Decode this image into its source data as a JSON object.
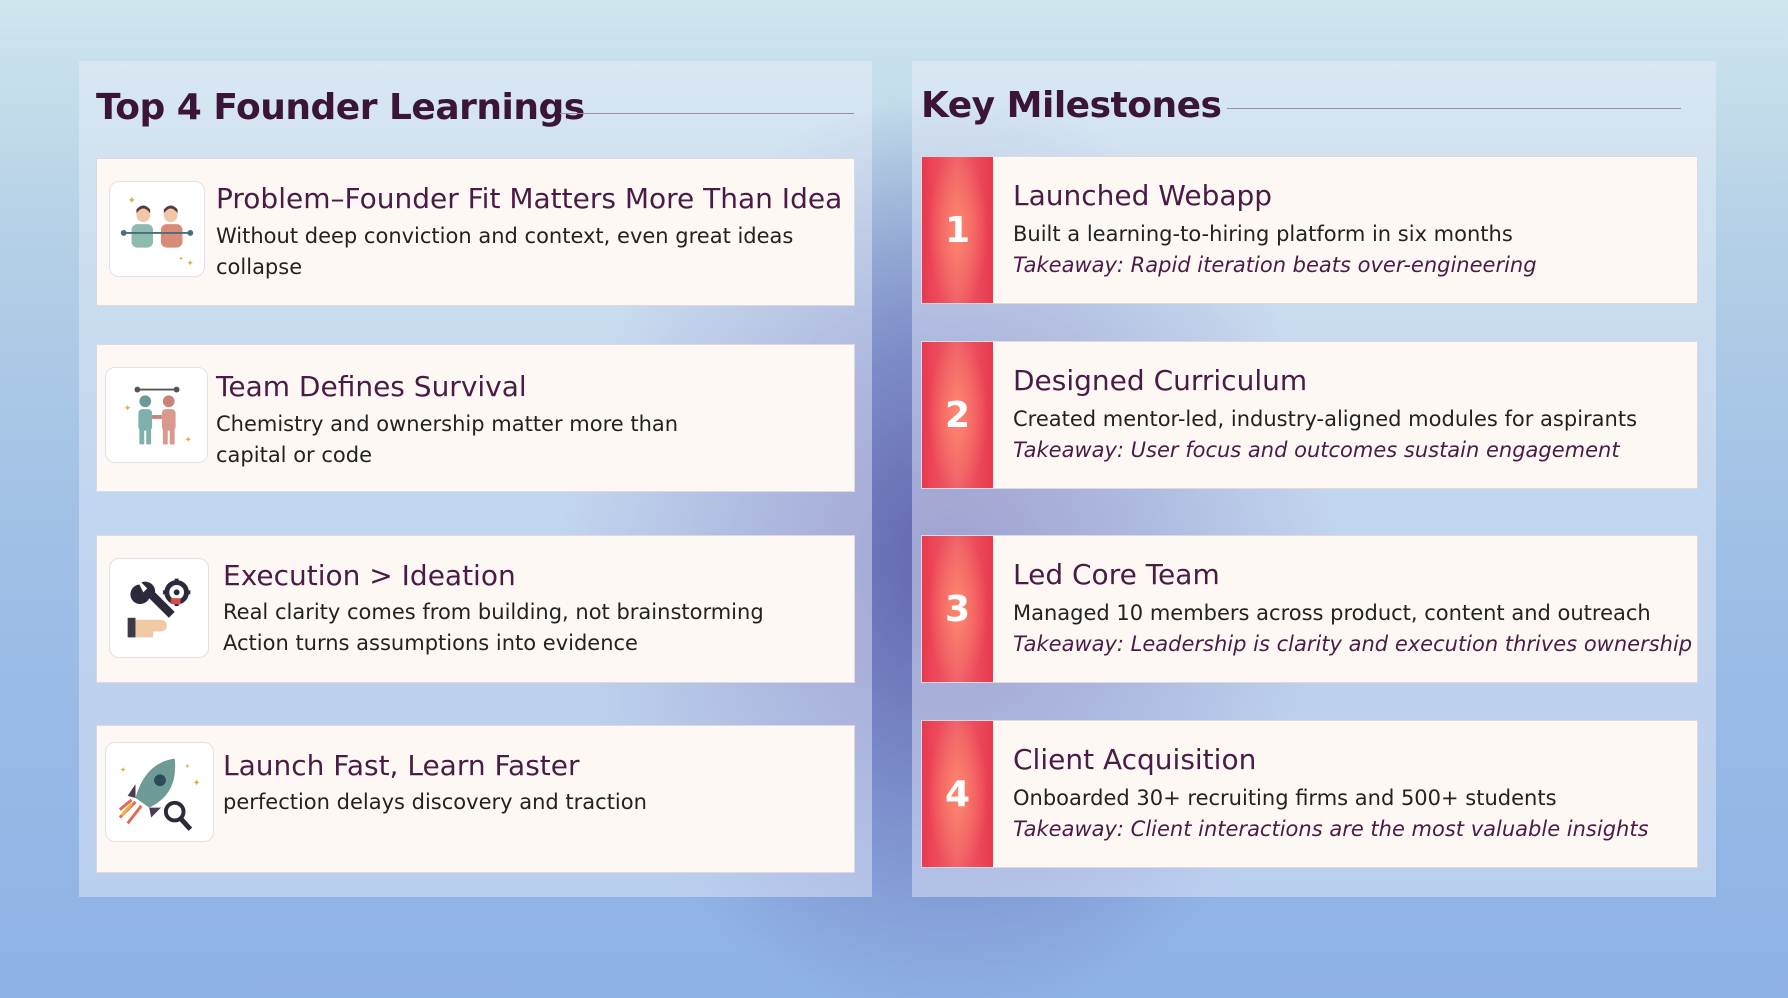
{
  "learnings": {
    "title": "Top 4 Founder Learnings",
    "items": [
      {
        "icon": "handshake-people-icon",
        "title": "Problem–Founder Fit Matters More Than Idea",
        "lines": [
          "Without deep conviction and context, even great ideas",
          "collapse"
        ]
      },
      {
        "icon": "team-handshake-icon",
        "title": "Team Defines Survival",
        "lines": [
          "Chemistry and ownership matter more than",
          "capital or code"
        ]
      },
      {
        "icon": "wrench-gear-hand-icon",
        "title": "Execution > Ideation",
        "lines": [
          "Real clarity comes from building, not brainstorming",
          "Action turns assumptions into evidence"
        ]
      },
      {
        "icon": "rocket-magnifier-icon",
        "title": "Launch Fast, Learn Faster",
        "lines": [
          "perfection delays discovery and traction"
        ]
      }
    ]
  },
  "milestones": {
    "title": "Key Milestones",
    "accent_color": "#e8394f",
    "items": [
      {
        "number": "1",
        "title": "Launched Webapp",
        "description": "Built a learning-to-hiring platform in six months",
        "takeaway": "Takeaway: Rapid iteration beats over-engineering"
      },
      {
        "number": "2",
        "title": "Designed Curriculum",
        "description": "Created mentor-led, industry-aligned modules for aspirants",
        "takeaway": "Takeaway: User focus and outcomes sustain engagement"
      },
      {
        "number": "3",
        "title": "Led Core Team",
        "description": "Managed 10 members across product, content and outreach",
        "takeaway": "Takeaway: Leadership is clarity and execution thrives ownership"
      },
      {
        "number": "4",
        "title": "Client Acquisition",
        "description": "Onboarded 30+ recruiting firms and 500+ students",
        "takeaway": "Takeaway: Client interactions are the most valuable insights"
      }
    ]
  }
}
